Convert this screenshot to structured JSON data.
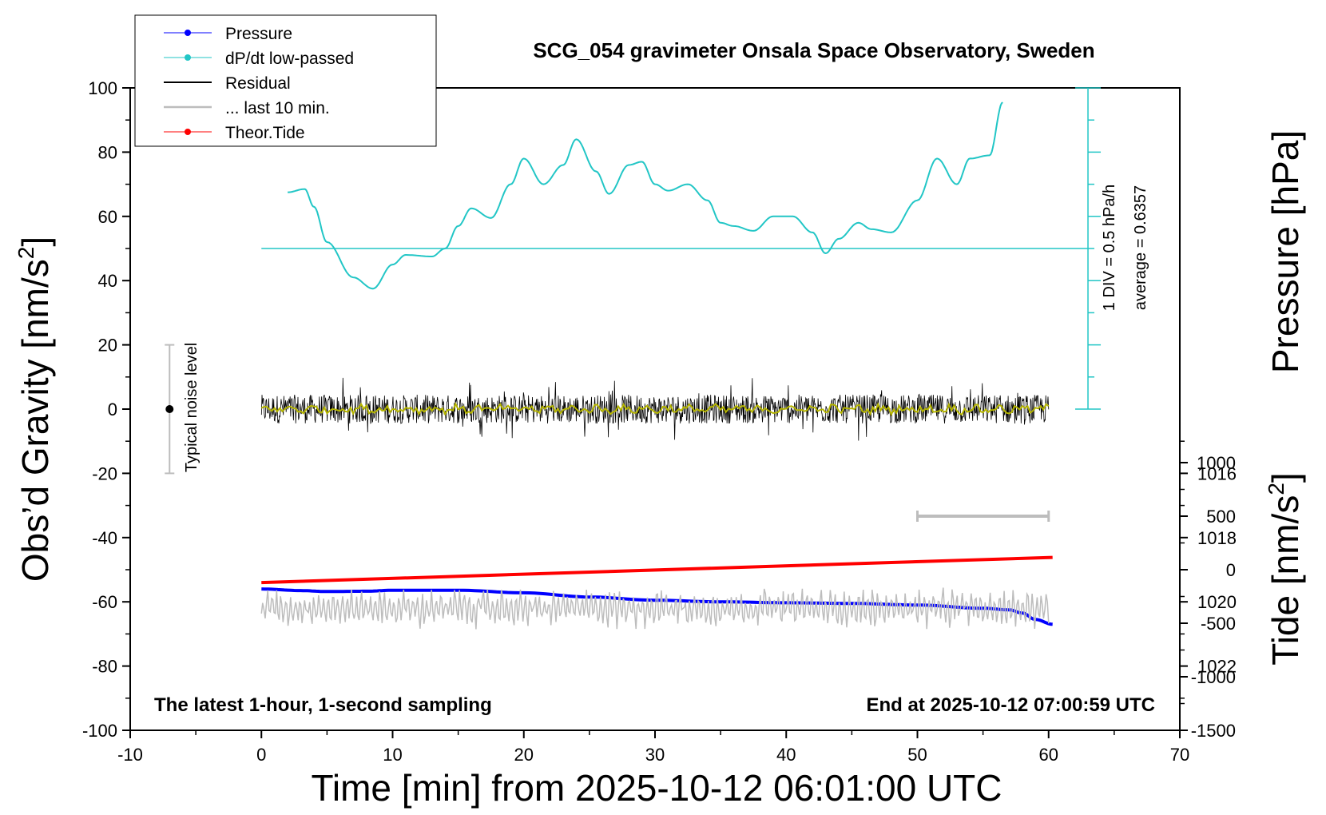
{
  "chart_data": {
    "type": "line",
    "title": "SCG_054 gravimeter Onsala Space Observatory, Sweden",
    "xlabel": "Time [min] from 2025-10-12 06:01:00 UTC",
    "ylabel_left": "Obs’d Gravity [nm/s",
    "ylabel_left_sup": "2",
    "ylabel_left_close": "]",
    "ylabel_right_top": "Pressure [hPa]",
    "ylabel_right_bottom": "Tide [nm/s",
    "ylabel_right_bottom_sup": "2",
    "ylabel_right_bottom_close": "]",
    "xlim": [
      -10,
      70
    ],
    "ylim_left": [
      -100,
      100
    ],
    "ylim_pressure": [
      1014,
      1024
    ],
    "ylim_tide": [
      -1500,
      1500
    ],
    "x_ticks": [
      "-10",
      "0",
      "10",
      "20",
      "30",
      "40",
      "50",
      "60",
      "70"
    ],
    "y_ticks_left": [
      "-100",
      "-80",
      "-60",
      "-40",
      "-20",
      "0",
      "20",
      "40",
      "60",
      "80",
      "100"
    ],
    "y_ticks_pressure": [
      "1016",
      "1018",
      "1020",
      "1022"
    ],
    "y_ticks_tide": [
      "-1500",
      "-1000",
      "-500",
      "0",
      "500",
      "1000"
    ],
    "grid": false,
    "legend_placement": "top-left",
    "legend": [
      {
        "name": "Pressure",
        "color": "#0000ff",
        "marker": true
      },
      {
        "name": "dP/dt low-passed",
        "color": "#22c6c6",
        "marker": true
      },
      {
        "name": "Residual",
        "color": "#000000",
        "marker": false
      },
      {
        "name": "... last 10 min.",
        "color": "#bdbdbd",
        "marker": false
      },
      {
        "name": "Theor.Tide",
        "color": "#ff0000",
        "marker": true
      }
    ],
    "series": [
      {
        "name": "Pressure",
        "axis": "pressure",
        "color": "#0000ff",
        "x": [
          0,
          3,
          5,
          8,
          10,
          15,
          20,
          25,
          30,
          35,
          40,
          45,
          50,
          55,
          57,
          58,
          59,
          60.3
        ],
        "y": [
          1019.6,
          1019.65,
          1019.68,
          1019.67,
          1019.64,
          1019.64,
          1019.72,
          1019.85,
          1019.95,
          1020.0,
          1020.03,
          1020.05,
          1020.1,
          1020.2,
          1020.25,
          1020.35,
          1020.55,
          1020.7
        ]
      },
      {
        "name": "dP/dt low-passed",
        "axis": "left",
        "color": "#22c6c6",
        "x": [
          2,
          3.3,
          4,
          5,
          7,
          8.5,
          10,
          11,
          13,
          14,
          15,
          16,
          17.5,
          19,
          20,
          21.5,
          23,
          24,
          25.5,
          26.5,
          28,
          29,
          30,
          31,
          32.5,
          34,
          35,
          36,
          37.5,
          39,
          40.5,
          42,
          43,
          44,
          45.5,
          46.5,
          48,
          50,
          51.5,
          53,
          54,
          55.5,
          56.5
        ],
        "y": [
          67.5,
          68.5,
          63,
          52,
          41,
          37.5,
          45,
          48,
          47.5,
          50,
          57,
          62.5,
          59.5,
          70,
          78,
          70,
          76,
          84,
          74,
          67,
          76,
          77,
          70,
          68,
          70,
          65,
          58,
          57,
          55.5,
          60,
          60,
          55,
          48.5,
          53,
          58,
          56,
          55,
          65,
          78,
          70,
          78,
          79,
          95.5
        ]
      },
      {
        "name": "Residual",
        "axis": "left",
        "color": "#000000",
        "x": [
          0,
          60
        ],
        "y": [
          0,
          0
        ],
        "amplitude_range": [
          -12,
          12
        ]
      },
      {
        "name": "Residual (low-passed)",
        "axis": "left",
        "color": "#b5b500",
        "x": [
          0,
          60
        ],
        "y": [
          0,
          0
        ]
      },
      {
        "name": "... last 10 min.",
        "axis": "left",
        "color": "#bdbdbd",
        "x": [
          0,
          60
        ],
        "y": [
          -62,
          -62
        ],
        "amplitude_range": [
          -72,
          -52
        ]
      },
      {
        "name": "Theor.Tide",
        "axis": "tide",
        "color": "#ff0000",
        "x": [
          0,
          60.3
        ],
        "y": [
          -120,
          115
        ]
      }
    ],
    "annotations": {
      "noise_label": "Typical noise level",
      "noise_bar": {
        "x": -7,
        "y_center": 0,
        "y_low": -20,
        "y_high": 20
      },
      "scale_label_1": "1 DIV = 0.5 hPa/h",
      "scale_label_2": "average = 0.6357",
      "scale_axis": {
        "x": 63,
        "y_from": 0,
        "y_to": 100,
        "average_line_y": 50
      },
      "gray_range": {
        "x_from": 50,
        "x_to": 60,
        "tide_value": 500
      },
      "bottom_left": "The latest 1-hour, 1-second sampling",
      "bottom_right": "End at 2025-10-12 07:00:59 UTC"
    }
  },
  "colors": {
    "pressure": "#0000ff",
    "dpdt": "#22c6c6",
    "residual": "#000000",
    "residual_smooth": "#b5b500",
    "last10": "#bdbdbd",
    "tide": "#ff0000",
    "noise_bar": "#bdbdbd"
  }
}
